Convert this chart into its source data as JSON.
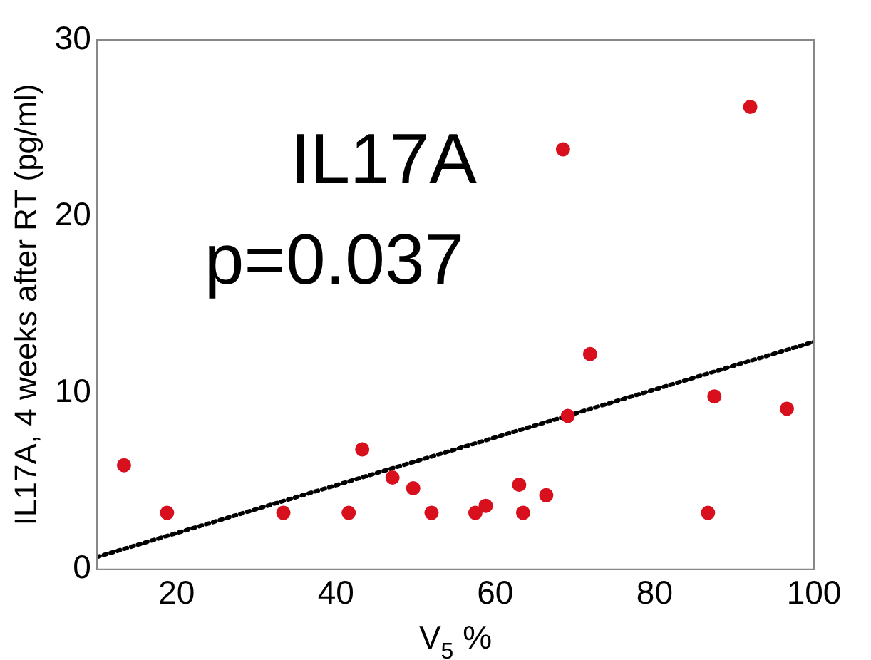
{
  "chart_data": {
    "type": "scatter",
    "xlabel": "V$_{5}$ %",
    "ylabel": "IL17A, 4 weeks after RT (pg/ml)",
    "annotations": [
      "IL17A",
      "p=0.037"
    ],
    "xlim": [
      10,
      100
    ],
    "xticks": [
      20,
      40,
      60,
      80,
      100
    ],
    "ylim": [
      0,
      30
    ],
    "yticks": [
      0,
      10,
      20,
      30
    ],
    "grid": false,
    "legend": false,
    "marker": "circle",
    "series": [
      {
        "color": "#d8101e",
        "x": [
          13.4,
          18.8,
          33.4,
          41.6,
          43.3,
          47.1,
          49.7,
          52.0,
          57.5,
          58.8,
          63.0,
          63.5,
          66.4,
          68.5,
          69.1,
          71.9,
          86.7,
          87.5,
          92.0,
          96.6
        ],
        "values": [
          5.9,
          3.2,
          3.2,
          3.2,
          6.8,
          5.2,
          4.6,
          3.2,
          3.2,
          3.6,
          4.8,
          3.2,
          4.2,
          23.8,
          8.7,
          12.2,
          3.2,
          9.8,
          26.2,
          9.1
        ]
      },
      {
        "type": "line",
        "color": "#000000",
        "line_style": "dotted",
        "marker": "none",
        "x": [
          10,
          100
        ],
        "values": [
          0.7,
          12.9
        ]
      }
    ]
  }
}
